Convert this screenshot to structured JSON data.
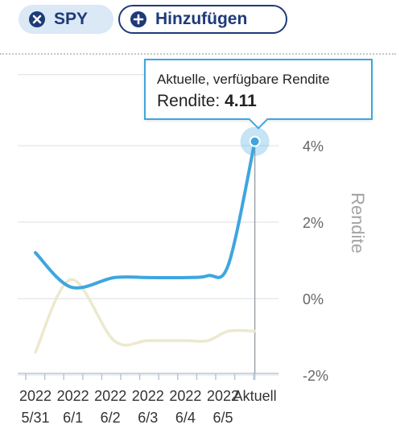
{
  "chips": {
    "spy_label": "SPY",
    "add_label": "Hinzufügen"
  },
  "icons": {
    "remove": "close-circle-icon",
    "add": "plus-circle-icon"
  },
  "colors": {
    "primary_line": "#3ea6de",
    "secondary_line": "#ece9cd",
    "chip_text": "#1e3a78",
    "chip_bg": "#dbe8f6"
  },
  "tooltip": {
    "title": "Aktuelle, verfügbare Rendite",
    "value_label": "Rendite:",
    "value": "4.11"
  },
  "chart_data": {
    "type": "line",
    "ylabel": "Rendite",
    "y_axis_position": "right",
    "ylim": [
      -2,
      5.9
    ],
    "yticks": [
      4,
      2,
      0,
      -2
    ],
    "ytick_labels": [
      "4%",
      "2%",
      "0%",
      "-2%"
    ],
    "grid": true,
    "x": [
      0,
      1,
      2,
      3,
      4,
      5,
      5.85
    ],
    "x_tick_labels": [
      {
        "line1": "2022",
        "line2": "5/31"
      },
      {
        "line1": "2022",
        "line2": "6/1"
      },
      {
        "line1": "2022",
        "line2": "6/2"
      },
      {
        "line1": "2022",
        "line2": "6/3"
      },
      {
        "line1": "2022",
        "line2": "6/4"
      },
      {
        "line1": "2022",
        "line2": "6/5"
      },
      {
        "line1": "Aktuell",
        "line2": ""
      }
    ],
    "series": [
      {
        "points": [
          [
            0,
            1.2
          ],
          [
            0.95,
            0.3
          ],
          [
            2.1,
            0.55
          ],
          [
            3,
            0.55
          ],
          [
            4,
            0.55
          ],
          [
            4.6,
            0.6
          ],
          [
            5.15,
            0.9
          ],
          [
            5.85,
            4.11
          ]
        ],
        "color": "#3ea6de"
      },
      {
        "points": [
          [
            0,
            -1.4
          ],
          [
            0.95,
            0.5
          ],
          [
            2.1,
            -1.1
          ],
          [
            3,
            -1.1
          ],
          [
            4,
            -1.1
          ],
          [
            4.6,
            -1.1
          ],
          [
            5.15,
            -0.85
          ],
          [
            5.85,
            -0.85
          ]
        ],
        "color": "#ece9cd"
      }
    ],
    "highlight": {
      "x": 5.85,
      "y": 4.11
    }
  }
}
